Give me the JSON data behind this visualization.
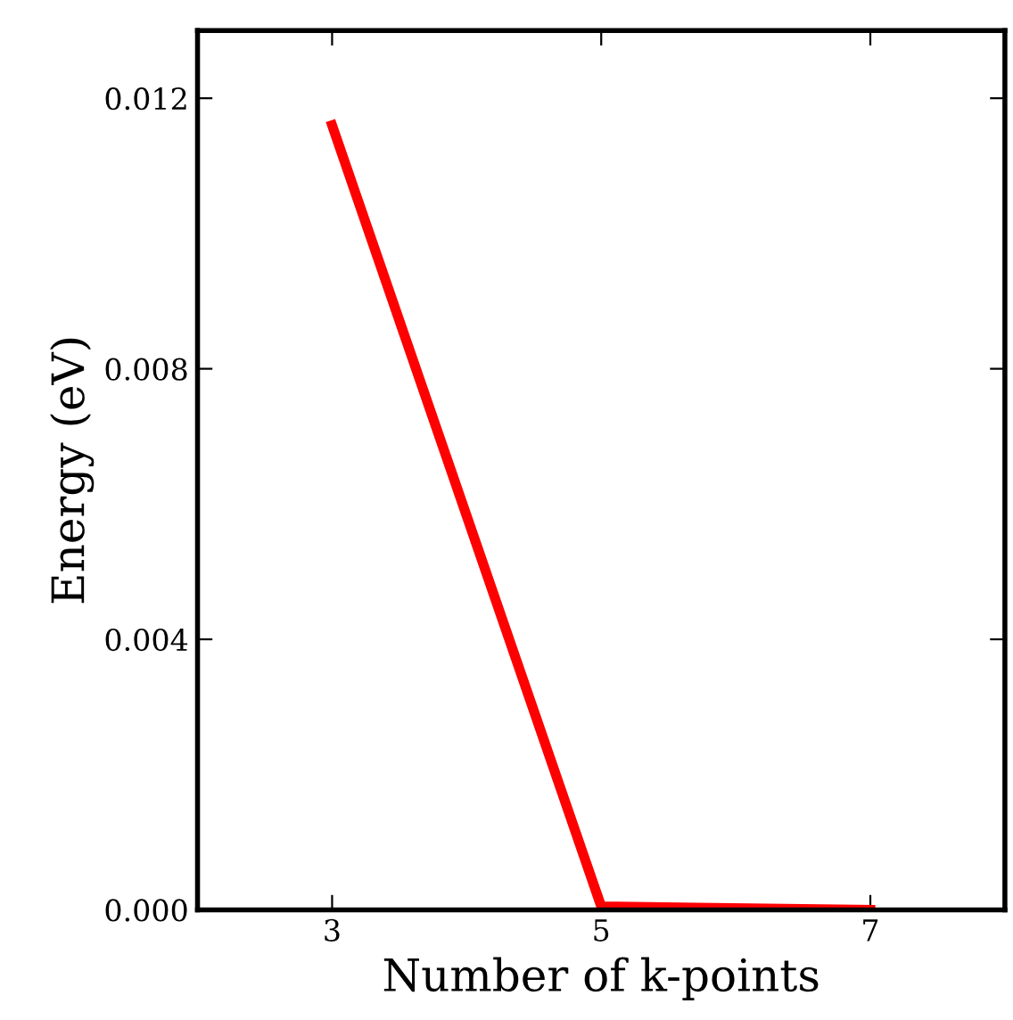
{
  "chart_data": {
    "type": "line",
    "xlabel": "Number of k-points",
    "ylabel": "Energy (eV)",
    "x": [
      3,
      5,
      7
    ],
    "series": [
      {
        "color": "#ff0000",
        "values": [
          0.0116,
          5e-05,
          0.0
        ]
      }
    ],
    "xlim": [
      2,
      8
    ],
    "xticks": [
      3,
      5,
      7
    ],
    "ylim": [
      0,
      0.013
    ],
    "yticks": [
      {
        "value": 0,
        "label": "0.000"
      },
      {
        "value": 0.004,
        "label": "0.004"
      },
      {
        "value": 0.008,
        "label": "0.008"
      },
      {
        "value": 0.012,
        "label": "0.012"
      }
    ],
    "grid": false,
    "legend": false,
    "marker": "none",
    "line_style": "solid"
  }
}
